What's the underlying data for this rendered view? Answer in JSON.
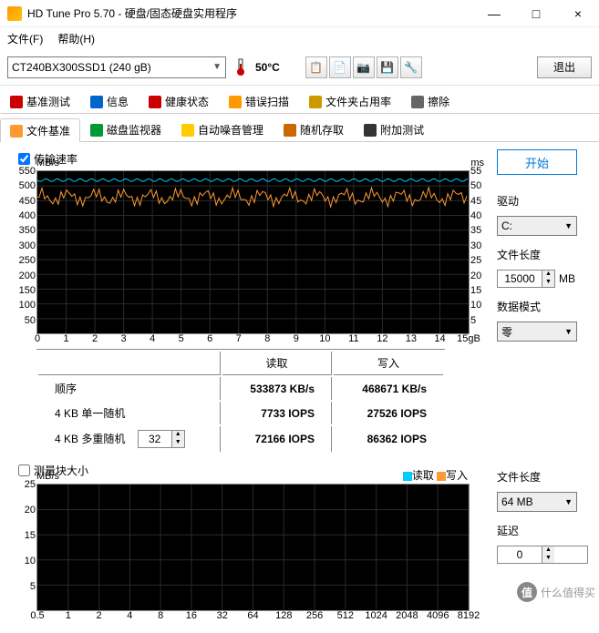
{
  "window": {
    "title": "HD Tune Pro 5.70 - 硬盘/固态硬盘实用程序",
    "min": "—",
    "max": "□",
    "close": "×"
  },
  "menu": {
    "file": "文件(F)",
    "help": "帮助(H)"
  },
  "toolbar": {
    "drive": "CT240BX300SSD1 (240 gB)",
    "temp": "50°C",
    "exit": "退出"
  },
  "tabs_row1": [
    {
      "icon": "#cc0000",
      "label": "基准测试"
    },
    {
      "icon": "#0066cc",
      "label": "信息"
    },
    {
      "icon": "#cc0000",
      "label": "健康状态"
    },
    {
      "icon": "#ff9900",
      "label": "错误扫描"
    },
    {
      "icon": "#cc9900",
      "label": "文件夹占用率"
    },
    {
      "icon": "#666666",
      "label": "擦除"
    }
  ],
  "tabs_row2": [
    {
      "icon": "#ff9933",
      "label": "文件基准",
      "active": true
    },
    {
      "icon": "#009933",
      "label": "磁盘监视器"
    },
    {
      "icon": "#ffcc00",
      "label": "自动噪音管理"
    },
    {
      "icon": "#cc6600",
      "label": "随机存取"
    },
    {
      "icon": "#333333",
      "label": "附加测试"
    }
  ],
  "section1": {
    "checkbox": "传输速率",
    "checked": true,
    "y_title": "MB/s",
    "y_right_title": "ms",
    "y_ticks": [
      550,
      500,
      450,
      400,
      350,
      300,
      250,
      200,
      150,
      100,
      50
    ],
    "yr_ticks": [
      55,
      50,
      45,
      40,
      35,
      30,
      25,
      20,
      15,
      10,
      5
    ],
    "x_ticks": [
      0,
      1,
      2,
      3,
      4,
      5,
      6,
      7,
      8,
      9,
      10,
      11,
      12,
      13,
      14,
      "15gB"
    ],
    "colors": {
      "read": "#00ccff",
      "write": "#ff9933",
      "bg": "#000000",
      "grid": "#2a2a2a"
    },
    "read_line_y": 0.055,
    "write_line_y": 0.16,
    "write_jitter": 0.06
  },
  "results": {
    "cols": [
      "",
      "读取",
      "写入"
    ],
    "rows": [
      {
        "name": "顺序",
        "read": "533873 KB/s",
        "write": "468671 KB/s"
      },
      {
        "name": "4 KB 单一随机",
        "read": "7733 IOPS",
        "write": "27526 IOPS"
      },
      {
        "name": "4 KB 多重随机",
        "spinner": "32",
        "read": "72166 IOPS",
        "write": "86362 IOPS"
      }
    ]
  },
  "section2": {
    "checkbox": "测量块大小",
    "checked": false,
    "y_title": "MB/s",
    "y_ticks": [
      25,
      20,
      15,
      10,
      5
    ],
    "x_ticks": [
      0.5,
      1,
      2,
      4,
      8,
      16,
      32,
      64,
      128,
      256,
      512,
      1024,
      2048,
      4096,
      8192
    ],
    "legend": {
      "read": "读取",
      "write": "写入"
    },
    "colors": {
      "read": "#00ccff",
      "write": "#ff9933"
    }
  },
  "side": {
    "start": "开始",
    "drive_label": "驱动",
    "drive_value": "C:",
    "filelen_label": "文件长度",
    "filelen_value": "15000",
    "filelen_unit": "MB",
    "datamode_label": "数据模式",
    "datamode_value": "零",
    "filelen2_label": "文件长度",
    "filelen2_value": "64 MB",
    "delay_label": "延迟",
    "delay_value": "0"
  },
  "watermark": "什么值得买"
}
